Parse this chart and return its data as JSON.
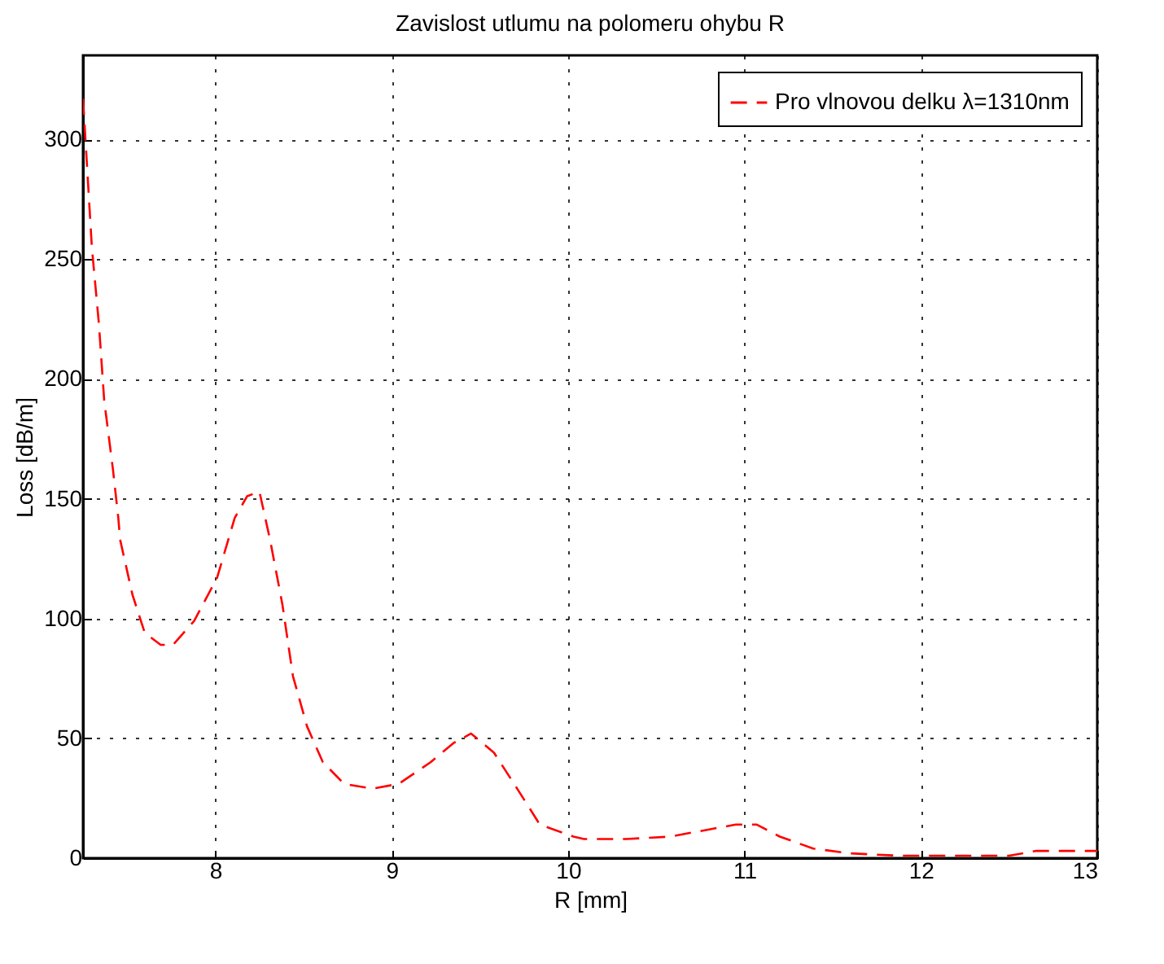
{
  "chart_data": {
    "type": "line",
    "title": "Zavislost utlumu na polomeru ohybu R",
    "xlabel": "R [mm]",
    "ylabel": "Loss [dB/m]",
    "x": [
      7.25,
      7.3,
      7.34,
      7.37,
      7.42,
      7.45,
      7.46,
      7.53,
      7.6,
      7.69,
      7.76,
      7.88,
      8.01,
      8.11,
      8.18,
      8.25,
      8.31,
      8.38,
      8.44,
      8.52,
      8.61,
      8.73,
      8.89,
      9.04,
      9.22,
      9.35,
      9.45,
      9.58,
      9.72,
      9.84,
      10.03,
      10.09,
      10.33,
      10.58,
      10.8,
      10.95,
      11.07,
      11.2,
      11.39,
      11.6,
      11.88,
      12.5,
      12.65,
      13.0
    ],
    "series": [
      {
        "name": "Pro vlnovou delku λ=1310nm",
        "color": "#ff0000",
        "values": [
          317,
          255,
          223,
          191,
          162,
          142,
          133,
          110,
          94,
          89,
          89,
          99,
          117,
          142,
          151,
          153,
          133,
          106,
          76,
          55,
          40,
          31,
          29,
          31,
          40,
          48,
          52,
          44,
          28,
          14,
          9,
          8,
          8,
          9,
          12,
          14,
          14,
          9,
          4,
          2,
          1,
          1,
          3,
          3
        ]
      }
    ],
    "xlim": [
      7.25,
      13
    ],
    "xticks": [
      8,
      9,
      10,
      11,
      12,
      13
    ],
    "ylim": [
      0,
      335
    ],
    "yticks": [
      0,
      50,
      100,
      150,
      200,
      250,
      300
    ],
    "grid": true,
    "legend": "top right",
    "line_style": "dashed",
    "marker": "none"
  }
}
